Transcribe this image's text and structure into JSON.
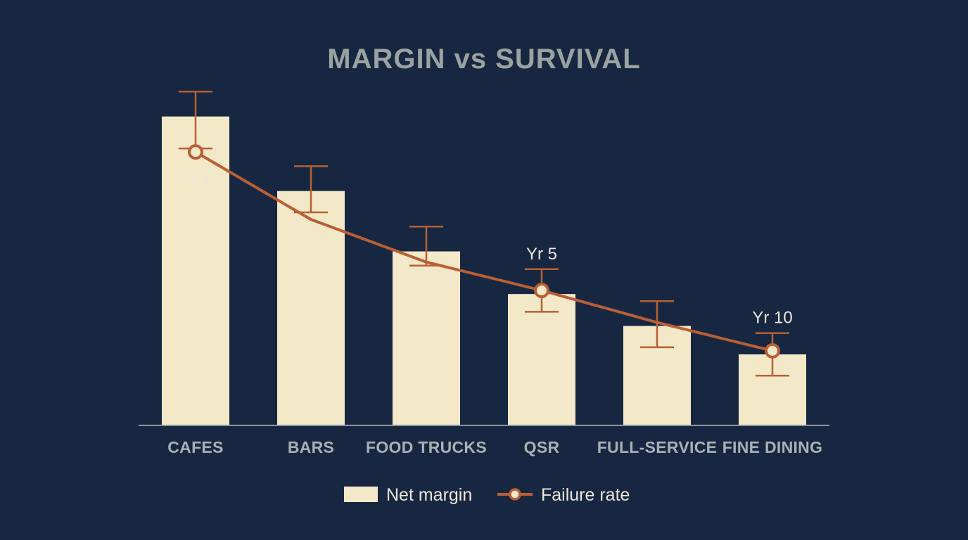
{
  "chart_data": {
    "type": "bar",
    "title": "MARGIN vs SURVIVAL",
    "categories": [
      "CAFES",
      "BARS",
      "FOOD TRUCKS",
      "QSR",
      "FULL-SERVICE",
      "FINE DINING"
    ],
    "series": [
      {
        "name": "Net margin",
        "type": "bar",
        "values": [
          8.7,
          6.6,
          4.9,
          3.7,
          2.8,
          2.0
        ],
        "error": [
          [
            7.8,
            9.4
          ],
          [
            6.0,
            7.3
          ],
          [
            4.5,
            5.6
          ],
          [
            3.2,
            4.4
          ],
          [
            2.2,
            3.5
          ],
          [
            1.4,
            2.6
          ]
        ],
        "color": "#f3e8c8"
      },
      {
        "name": "Failure rate",
        "type": "line",
        "values": [
          7.7,
          5.8,
          4.6,
          3.8,
          2.9,
          2.1
        ],
        "markers": [
          true,
          false,
          false,
          true,
          false,
          true
        ],
        "point_labels": [
          "Yr 1",
          "",
          "",
          "Yr 5",
          "",
          "Yr 10"
        ],
        "color": "#b85f35"
      }
    ],
    "ylim": [
      0,
      10
    ],
    "grid": false,
    "legend": "bottom-center"
  }
}
